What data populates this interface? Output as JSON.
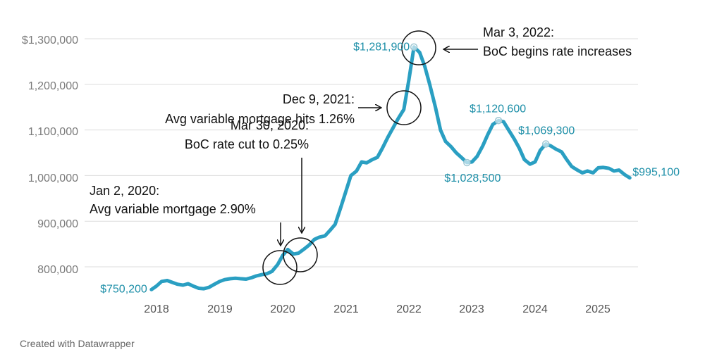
{
  "chart_data": {
    "type": "line",
    "title": "",
    "xlabel": "",
    "ylabel": "",
    "x_ticks": [
      "2018",
      "2019",
      "2020",
      "2021",
      "2022",
      "2023",
      "2024",
      "2025"
    ],
    "y_ticks": [
      "$1,300,000",
      "1,200,000",
      "1,100,000",
      "1,000,000",
      "900,000",
      "800,000"
    ],
    "ylim": [
      750000,
      1300000
    ],
    "xlim": [
      2017.92,
      2025.5
    ],
    "grid": true,
    "line_color": "#2a9fc2",
    "series": [
      {
        "x": [
          2017.92,
          2018.0,
          2018.08,
          2018.17,
          2018.25,
          2018.33,
          2018.42,
          2018.5,
          2018.58,
          2018.67,
          2018.75,
          2018.83,
          2018.92,
          2019.0,
          2019.08,
          2019.17,
          2019.25,
          2019.33,
          2019.42,
          2019.5,
          2019.58,
          2019.67,
          2019.75,
          2019.83,
          2019.92,
          2020.0,
          2020.08,
          2020.17,
          2020.25,
          2020.33,
          2020.42,
          2020.5,
          2020.58,
          2020.67,
          2020.75,
          2020.83,
          2020.92,
          2021.0,
          2021.08,
          2021.17,
          2021.25,
          2021.33,
          2021.42,
          2021.5,
          2021.58,
          2021.67,
          2021.75,
          2021.83,
          2021.92,
          2022.0,
          2022.08,
          2022.17,
          2022.25,
          2022.33,
          2022.42,
          2022.5,
          2022.58,
          2022.67,
          2022.75,
          2022.83,
          2022.92,
          2023.0,
          2023.08,
          2023.17,
          2023.25,
          2023.33,
          2023.42,
          2023.5,
          2023.58,
          2023.67,
          2023.75,
          2023.83,
          2023.92,
          2024.0,
          2024.08,
          2024.17,
          2024.25,
          2024.33,
          2024.42,
          2024.5,
          2024.58,
          2024.67,
          2024.75,
          2024.83,
          2024.92,
          2025.0,
          2025.08,
          2025.17,
          2025.25,
          2025.33,
          2025.42,
          2025.5
        ],
        "y": [
          750200,
          758000,
          768000,
          770000,
          766000,
          762000,
          760000,
          763000,
          758000,
          753000,
          752000,
          755000,
          762000,
          768000,
          772000,
          774000,
          775000,
          774000,
          773000,
          776000,
          780000,
          783000,
          785000,
          790000,
          805000,
          825000,
          838000,
          828000,
          830000,
          838000,
          848000,
          860000,
          865000,
          868000,
          880000,
          893000,
          930000,
          965000,
          1000000,
          1010000,
          1030000,
          1028000,
          1035000,
          1040000,
          1060000,
          1085000,
          1105000,
          1125000,
          1145000,
          1210000,
          1281900,
          1270000,
          1240000,
          1200000,
          1150000,
          1100000,
          1075000,
          1063000,
          1050000,
          1040000,
          1028500,
          1030000,
          1042000,
          1065000,
          1090000,
          1112000,
          1120600,
          1118000,
          1100000,
          1080000,
          1060000,
          1035000,
          1025000,
          1030000,
          1055000,
          1069300,
          1065000,
          1058000,
          1052000,
          1035000,
          1020000,
          1012000,
          1006000,
          1010000,
          1006000,
          1017000,
          1018000,
          1016000,
          1010000,
          1012000,
          1002000,
          995100
        ]
      }
    ],
    "data_labels": [
      {
        "x": 2017.92,
        "y": 750200,
        "text": "$750,200"
      },
      {
        "x": 2022.08,
        "y": 1281900,
        "text": "$1,281,900"
      },
      {
        "x": 2022.92,
        "y": 1028500,
        "text": "$1,028,500"
      },
      {
        "x": 2023.42,
        "y": 1120600,
        "text": "$1,120,600"
      },
      {
        "x": 2024.17,
        "y": 1069300,
        "text": "$1,069,300"
      },
      {
        "x": 2025.5,
        "y": 995100,
        "text": "$995,100"
      }
    ],
    "annotations": [
      {
        "lines": [
          "Mar 3, 2022:",
          "BoC begins rate increases"
        ]
      },
      {
        "lines": [
          "Dec 9, 2021:",
          "Avg variable mortgage hits 1.26%"
        ]
      },
      {
        "lines": [
          "Mar 30, 2020:",
          "BoC rate cut to 0.25%"
        ]
      },
      {
        "lines": [
          "Jan 2, 2020:",
          "Avg variable mortgage 2.90%"
        ]
      }
    ]
  },
  "footer": {
    "credit": "Created with Datawrapper"
  }
}
